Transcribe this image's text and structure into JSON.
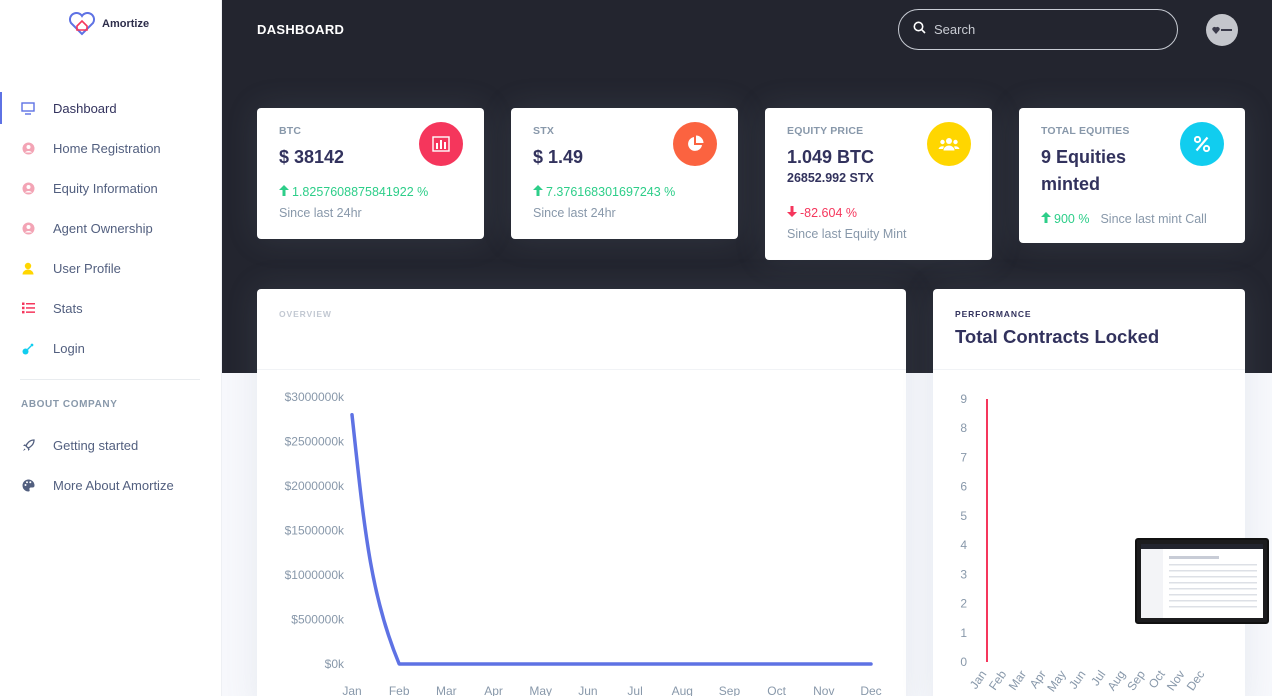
{
  "brand": {
    "name": "Amortize"
  },
  "sidebar": {
    "items": [
      {
        "label": "Dashboard",
        "icon": "monitor-icon",
        "color": "#5e72e4",
        "active": true
      },
      {
        "label": "Home Registration",
        "icon": "user-circle-icon",
        "color": "#f3a4b5"
      },
      {
        "label": "Equity Information",
        "icon": "user-circle-icon",
        "color": "#f3a4b5"
      },
      {
        "label": "Agent Ownership",
        "icon": "user-circle-icon",
        "color": "#f3a4b5"
      },
      {
        "label": "User Profile",
        "icon": "single-user-icon",
        "color": "#ffd600"
      },
      {
        "label": "Stats",
        "icon": "list-icon",
        "color": "#f5365c"
      },
      {
        "label": "Login",
        "icon": "key-icon",
        "color": "#11cdef"
      }
    ],
    "section_heading": "ABOUT COMPANY",
    "section_items": [
      {
        "label": "Getting started",
        "icon": "rocket-icon"
      },
      {
        "label": "More About Amortize",
        "icon": "palette-icon"
      }
    ]
  },
  "header": {
    "title": "DASHBOARD",
    "search_placeholder": "Search"
  },
  "cards": [
    {
      "label": "BTC",
      "value": "$ 38142",
      "change": "1.8257608875841922 %",
      "direction": "up",
      "since": "Since last 24hr",
      "icon": "bar-chart-icon",
      "icon_color": "#f5365c"
    },
    {
      "label": "STX",
      "value": "$ 1.49",
      "change": "7.376168301697243 %",
      "direction": "up",
      "since": "Since last 24hr",
      "icon": "pie-chart-icon",
      "icon_color": "#fb6340"
    },
    {
      "label": "EQUITY PRICE",
      "value": "1.049 BTC",
      "sub": "26852.992 STX",
      "change": "-82.604 %",
      "direction": "down",
      "since": "Since last Equity Mint",
      "icon": "users-icon",
      "icon_color": "#ffd600"
    },
    {
      "label": "TOTAL EQUITIES",
      "value_line1": "9 Equities",
      "value_line2": "minted",
      "change": "900 %",
      "direction": "up",
      "since": "Since last mint Call",
      "icon": "percent-icon",
      "icon_color": "#11cdef"
    }
  ],
  "overview": {
    "overline": "OVERVIEW",
    "title": ""
  },
  "performance": {
    "overline": "PERFORMANCE",
    "title": "Total Contracts Locked"
  },
  "chart_data": [
    {
      "type": "line",
      "title": "",
      "categories": [
        "Jan",
        "Feb",
        "Mar",
        "Apr",
        "May",
        "Jun",
        "Jul",
        "Aug",
        "Sep",
        "Oct",
        "Nov",
        "Dec"
      ],
      "series": [
        {
          "values": [
            2800000,
            0,
            0,
            0,
            0,
            0,
            0,
            0,
            0,
            0,
            0,
            0
          ]
        }
      ],
      "yticks": [
        "$0k",
        "$500000k",
        "$1000000k",
        "$1500000k",
        "$2000000k",
        "$2500000k",
        "$3000000k"
      ],
      "ylim": [
        0,
        3000000
      ],
      "color": "#5e72e4",
      "grid": false
    },
    {
      "type": "bar",
      "title": "Total Contracts Locked",
      "categories": [
        "Jan",
        "Feb",
        "Mar",
        "Apr",
        "May",
        "Jun",
        "Jul",
        "Aug",
        "Sep",
        "Oct",
        "Nov",
        "Dec"
      ],
      "series": [
        {
          "values": [
            9,
            0,
            0,
            0,
            0,
            0,
            0,
            0,
            0,
            0,
            0,
            0
          ]
        }
      ],
      "yticks": [
        "0",
        "1",
        "2",
        "3",
        "4",
        "5",
        "6",
        "7",
        "8",
        "9"
      ],
      "ylim": [
        0,
        9
      ],
      "color": "#f5365c",
      "grid": false
    }
  ]
}
